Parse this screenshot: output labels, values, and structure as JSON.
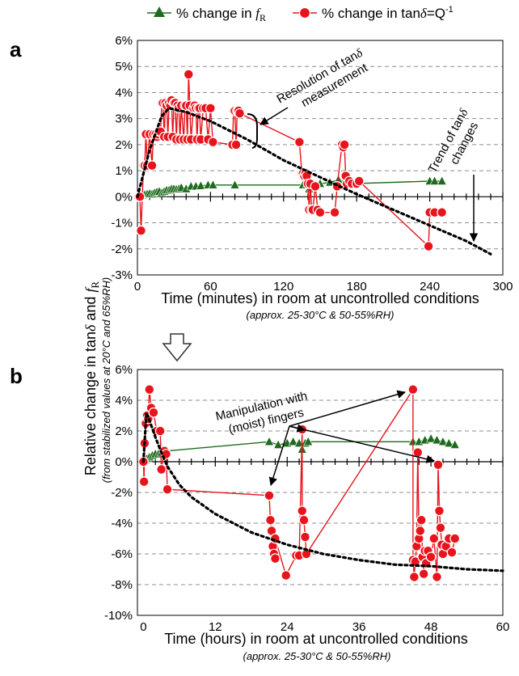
{
  "legend": [
    {
      "prefix": "% change in ",
      "symbol": "f",
      "sub": "R",
      "suffix": ""
    },
    {
      "prefix": "% change in tan",
      "symbol": "δ",
      "sub": "",
      "suffix": "=Q",
      "sup": "-1"
    }
  ],
  "y_axis_label": {
    "part1": "Relative change in tan",
    "delta": "δ",
    "part2": " and ",
    "f": "f",
    "sub": "R"
  },
  "y_axis_sublabel": "(from stabilized values at 20°C and 65%RH)",
  "colors": {
    "fR": "#1e6b1e",
    "tan": "#e8141c",
    "trend": "#000000",
    "grid": "#8c8c8c",
    "arrow_fill": "#ffffff"
  },
  "chart_data": [
    {
      "panel": "a",
      "type": "scatter",
      "xlabel": "Time (minutes) in room at uncontrolled conditions",
      "xlabel_sub": "(approx. 25-30°C & 50-55%RH)",
      "xlim": [
        0,
        300
      ],
      "ylim": [
        -3,
        6
      ],
      "xticks": [
        0,
        60,
        120,
        180,
        240,
        300
      ],
      "yticks": [
        -3,
        -2,
        -1,
        0,
        1,
        2,
        3,
        4,
        5,
        6
      ],
      "yticks_format": "percent",
      "grid": "horizontal dashed",
      "series": [
        {
          "key": "fR",
          "marker": "triangle",
          "points": [
            [
              1,
              0
            ],
            [
              4,
              0.05
            ],
            [
              6,
              0.08
            ],
            [
              8,
              0.1
            ],
            [
              10,
              0.12
            ],
            [
              12,
              0.1
            ],
            [
              14,
              0.15
            ],
            [
              16,
              0.18
            ],
            [
              18,
              0.2
            ],
            [
              20,
              0.15
            ],
            [
              22,
              0.2
            ],
            [
              24,
              0.25
            ],
            [
              26,
              0.25
            ],
            [
              28,
              0.3
            ],
            [
              30,
              0.3
            ],
            [
              32,
              0.28
            ],
            [
              34,
              0.3
            ],
            [
              36,
              0.35
            ],
            [
              40,
              0.3
            ],
            [
              44,
              0.4
            ],
            [
              48,
              0.4
            ],
            [
              52,
              0.42
            ],
            [
              58,
              0.45
            ],
            [
              62,
              0.45
            ],
            [
              80,
              0.45
            ],
            [
              136,
              0.45
            ],
            [
              139,
              0.45
            ],
            [
              141,
              0.3
            ],
            [
              143,
              0.35
            ],
            [
              146,
              0.45
            ],
            [
              150,
              0.5
            ],
            [
              158,
              0.55
            ],
            [
              165,
              0.65
            ],
            [
              175,
              0.5
            ],
            [
              240,
              0.6
            ],
            [
              244,
              0.6
            ],
            [
              250,
              0.6
            ]
          ]
        },
        {
          "key": "tan",
          "marker": "circle",
          "points": [
            [
              1,
              0
            ],
            [
              2,
              0
            ],
            [
              3,
              -1.3
            ],
            [
              5,
              1.2
            ],
            [
              6,
              1.2
            ],
            [
              7,
              2.4
            ],
            [
              8,
              1.2
            ],
            [
              10,
              2.4
            ],
            [
              12,
              1.2
            ],
            [
              13,
              2.4
            ],
            [
              15,
              2.4
            ],
            [
              16,
              2.3
            ],
            [
              17,
              2.4
            ],
            [
              18,
              2.5
            ],
            [
              19,
              2.5
            ],
            [
              20,
              3.6
            ],
            [
              21,
              3.6
            ],
            [
              22,
              2.3
            ],
            [
              23,
              3.6
            ],
            [
              24,
              3.5
            ],
            [
              25,
              2.3
            ],
            [
              26,
              3.6
            ],
            [
              27,
              3.5
            ],
            [
              28,
              3.7
            ],
            [
              29,
              2.3
            ],
            [
              30,
              3.6
            ],
            [
              31,
              3.6
            ],
            [
              32,
              2.2
            ],
            [
              33,
              3.5
            ],
            [
              34,
              3.4
            ],
            [
              35,
              2.2
            ],
            [
              36,
              3.5
            ],
            [
              38,
              2.2
            ],
            [
              39,
              3.5
            ],
            [
              40,
              3.5
            ],
            [
              41,
              2.2
            ],
            [
              42,
              4.7
            ],
            [
              43,
              3.5
            ],
            [
              44,
              2.2
            ],
            [
              46,
              3.4
            ],
            [
              47,
              3.5
            ],
            [
              48,
              3.4
            ],
            [
              49,
              2.2
            ],
            [
              50,
              3.4
            ],
            [
              51,
              3.4
            ],
            [
              52,
              2.2
            ],
            [
              54,
              3.4
            ],
            [
              56,
              3.4
            ],
            [
              58,
              2.2
            ],
            [
              60,
              3.4
            ],
            [
              62,
              2.1
            ],
            [
              78,
              2.0
            ],
            [
              79,
              3.3
            ],
            [
              80,
              3.3
            ],
            [
              81,
              2.0
            ],
            [
              82,
              3.3
            ],
            [
              83,
              3.3
            ],
            [
              84,
              3.2
            ],
            [
              133,
              2.1
            ],
            [
              135,
              0.9
            ],
            [
              136,
              0.9
            ],
            [
              137,
              0.8
            ],
            [
              138,
              0.9
            ],
            [
              139,
              0.8
            ],
            [
              140,
              0.5
            ],
            [
              141,
              -0.5
            ],
            [
              142,
              0.5
            ],
            [
              143,
              -0.5
            ],
            [
              144,
              -0.5
            ],
            [
              146,
              0.4
            ],
            [
              148,
              -0.5
            ],
            [
              150,
              -0.6
            ],
            [
              162,
              -0.6
            ],
            [
              164,
              0.4
            ],
            [
              168,
              2.0
            ],
            [
              169,
              1.9
            ],
            [
              170,
              2.0
            ],
            [
              171,
              0.8
            ],
            [
              172,
              0.5
            ],
            [
              174,
              0.6
            ],
            [
              176,
              0.5
            ],
            [
              180,
              0.5
            ],
            [
              182,
              0.6
            ],
            [
              239,
              -1.9
            ],
            [
              240,
              -0.6
            ],
            [
              244,
              -0.6
            ],
            [
              250,
              -0.6
            ]
          ]
        },
        {
          "key": "trend",
          "style": "dotted",
          "points": [
            [
              0,
              0
            ],
            [
              10,
              1.8
            ],
            [
              20,
              3.1
            ],
            [
              26,
              3.4
            ],
            [
              40,
              3.25
            ],
            [
              60,
              2.9
            ],
            [
              90,
              2.2
            ],
            [
              120,
              1.4
            ],
            [
              150,
              0.75
            ],
            [
              180,
              0.1
            ],
            [
              210,
              -0.5
            ],
            [
              240,
              -1.1
            ],
            [
              270,
              -1.7
            ],
            [
              290,
              -2.2
            ]
          ]
        }
      ],
      "annotations": {
        "resolution": {
          "line1": "Resolution of tan",
          "delta": "δ",
          "line2": "measurement"
        },
        "trend": {
          "line1": "Trend of tan",
          "delta": "δ",
          "line2": "changes"
        }
      }
    },
    {
      "panel": "b",
      "type": "scatter",
      "xlabel": "Time (hours) in room at uncontrolled conditions",
      "xlabel_sub": "(approx. 25-30°C & 50-55%RH)",
      "xlim": [
        -1,
        60
      ],
      "ylim": [
        -10,
        6
      ],
      "xticks": [
        0,
        12,
        24,
        36,
        48,
        60
      ],
      "yticks": [
        -10,
        -8,
        -6,
        -4,
        -2,
        0,
        2,
        4,
        6
      ],
      "yticks_format": "percent",
      "grid": "horizontal dashed",
      "series": [
        {
          "key": "fR",
          "marker": "triangle",
          "points": [
            [
              0,
              0
            ],
            [
              0.3,
              0.1
            ],
            [
              0.6,
              0.2
            ],
            [
              1,
              0.3
            ],
            [
              1.5,
              0.4
            ],
            [
              2,
              0.5
            ],
            [
              2.5,
              0.5
            ],
            [
              3,
              0.6
            ],
            [
              4,
              0.7
            ],
            [
              21,
              1.3
            ],
            [
              22.5,
              1.1
            ],
            [
              24,
              1.2
            ],
            [
              25,
              1.3
            ],
            [
              26,
              1.2
            ],
            [
              26.5,
              0.8
            ],
            [
              27,
              1.2
            ],
            [
              27.5,
              1.3
            ],
            [
              45,
              1.3
            ],
            [
              46,
              1.3
            ],
            [
              47,
              1.4
            ],
            [
              48,
              1.5
            ],
            [
              49,
              1.4
            ],
            [
              50,
              1.3
            ],
            [
              51,
              1.2
            ],
            [
              52,
              1.1
            ]
          ]
        },
        {
          "key": "tan",
          "marker": "circle",
          "points": [
            [
              0,
              0
            ],
            [
              0.1,
              -1.3
            ],
            [
              0.2,
              1.2
            ],
            [
              0.4,
              2.5
            ],
            [
              0.6,
              3.0
            ],
            [
              0.8,
              2.8
            ],
            [
              1,
              4.7
            ],
            [
              1.3,
              3.5
            ],
            [
              1.7,
              3.2
            ],
            [
              2.2,
              2.0
            ],
            [
              2.8,
              2.0
            ],
            [
              3,
              -0.5
            ],
            [
              3.5,
              0.7
            ],
            [
              3.8,
              0.5
            ],
            [
              4,
              -1.8
            ],
            [
              21,
              -2.2
            ],
            [
              21.2,
              -3.8
            ],
            [
              21.4,
              -4.5
            ],
            [
              21.6,
              -5.5
            ],
            [
              21.8,
              -6.0
            ],
            [
              22,
              -6.3
            ],
            [
              22,
              -5.0
            ],
            [
              23.8,
              -7.4
            ],
            [
              25.5,
              -6.1
            ],
            [
              26,
              -6.1
            ],
            [
              26.5,
              2.1
            ],
            [
              26.5,
              -3.2
            ],
            [
              26.8,
              -3.8
            ],
            [
              27,
              -4.9
            ],
            [
              27.2,
              -6.0
            ],
            [
              45,
              4.7
            ],
            [
              45,
              -6.4
            ],
            [
              45.2,
              -7.5
            ],
            [
              45.4,
              -6.5
            ],
            [
              45.6,
              -5.5
            ],
            [
              45.8,
              0.6
            ],
            [
              46,
              -5.0
            ],
            [
              46.2,
              -4.5
            ],
            [
              46.4,
              -3.8
            ],
            [
              46.6,
              -6.2
            ],
            [
              46.8,
              -7.3
            ],
            [
              47,
              -5.8
            ],
            [
              47.2,
              -6.6
            ],
            [
              47.5,
              -5.8
            ],
            [
              48,
              -6.2
            ],
            [
              48.5,
              -5.0
            ],
            [
              49,
              -7.5
            ],
            [
              49.2,
              -0.2
            ],
            [
              49.4,
              -3.2
            ],
            [
              49.6,
              -4.3
            ],
            [
              49.8,
              -5.4
            ],
            [
              50,
              -6.0
            ],
            [
              50.5,
              -5.5
            ],
            [
              51,
              -5.0
            ],
            [
              51.5,
              -5.9
            ],
            [
              52,
              -5.0
            ]
          ]
        },
        {
          "key": "trend",
          "style": "dotted",
          "points": [
            [
              0,
              0
            ],
            [
              0.5,
              3.2
            ],
            [
              1,
              2.7
            ],
            [
              2,
              1.6
            ],
            [
              3,
              0.6
            ],
            [
              4,
              -0.3
            ],
            [
              6,
              -1.5
            ],
            [
              8,
              -2.3
            ],
            [
              12,
              -3.4
            ],
            [
              18,
              -4.6
            ],
            [
              24,
              -5.4
            ],
            [
              30,
              -6.0
            ],
            [
              36,
              -6.4
            ],
            [
              42,
              -6.7
            ],
            [
              48,
              -6.8
            ],
            [
              54,
              -7.0
            ],
            [
              60,
              -7.1
            ]
          ]
        }
      ],
      "annotations": {
        "manipulation": {
          "line1": "Manipulation with",
          "line2": "(moist) fingers"
        }
      }
    }
  ]
}
